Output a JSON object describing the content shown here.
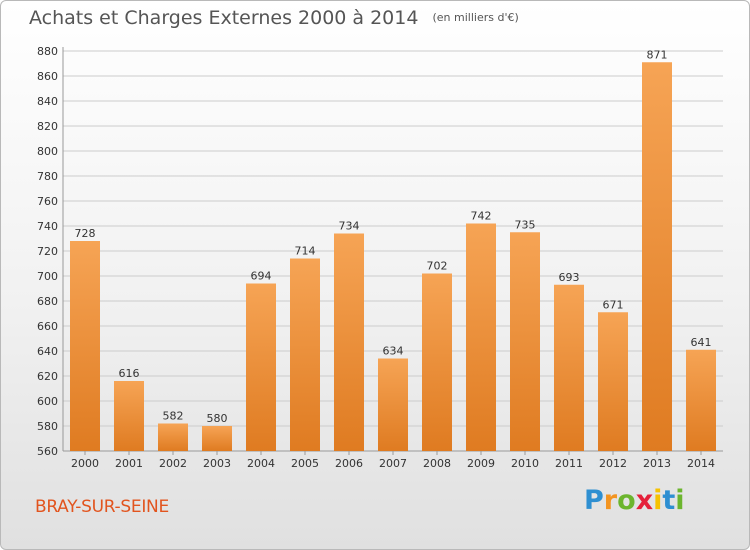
{
  "title": "Achats et Charges Externes 2000 à 2014",
  "subtitle": "(en milliers d'€)",
  "place": "BRAY-SUR-SEINE",
  "logo": {
    "letters": [
      "P",
      "r",
      "o",
      "x",
      "i",
      "t",
      "i"
    ],
    "colors": [
      "#2e8fd1",
      "#f39420",
      "#6cb52e",
      "#e5203a",
      "#f6c200",
      "#2e8fd1",
      "#6cb52e"
    ]
  },
  "colors": {
    "bar_top": "#f6a455",
    "bar_bottom": "#df7b21",
    "place": "#e2541e",
    "grid": "#cccccc"
  },
  "chart_data": {
    "type": "bar",
    "categories": [
      "2000",
      "2001",
      "2002",
      "2003",
      "2004",
      "2005",
      "2006",
      "2007",
      "2008",
      "2009",
      "2010",
      "2011",
      "2012",
      "2013",
      "2014"
    ],
    "values": [
      728,
      616,
      582,
      580,
      694,
      714,
      734,
      634,
      702,
      742,
      735,
      693,
      671,
      871,
      641
    ],
    "ylim": [
      560,
      880
    ],
    "yticks": [
      560,
      580,
      600,
      620,
      640,
      660,
      680,
      700,
      720,
      740,
      760,
      780,
      800,
      820,
      840,
      860,
      880
    ],
    "grid": true,
    "data_labels": true
  }
}
